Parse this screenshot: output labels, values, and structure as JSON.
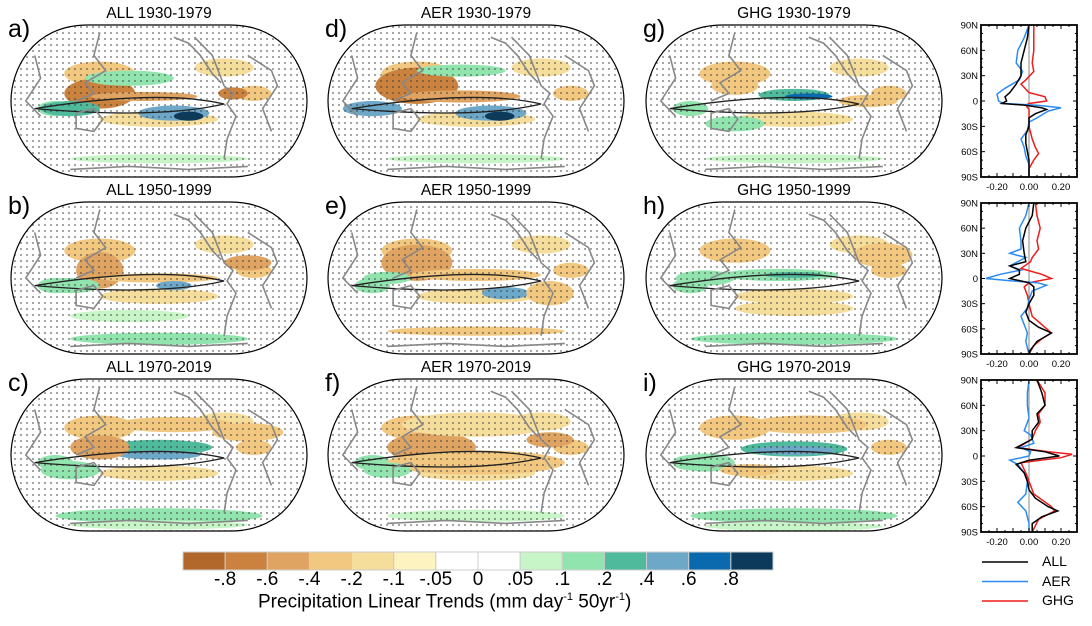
{
  "colorbar": {
    "title_main": "Precipitation Linear Trends (mm day",
    "title_sup1": "-1",
    "title_mid": " 50yr",
    "title_sup2": "-1",
    "title_end": ")",
    "labels": [
      "-.8",
      "-.6",
      "-.4",
      "-.2",
      "-.1",
      "-.05",
      "0",
      ".05",
      ".1",
      ".2",
      ".4",
      ".6",
      ".8"
    ],
    "colors": [
      "#b3682b",
      "#cb823e",
      "#e0a462",
      "#f2c880",
      "#f5dd9c",
      "#fdf3c0",
      "#ffffff",
      "#ffffff",
      "#c8f5c8",
      "#92e4af",
      "#4fba9c",
      "#6ea8c8",
      "#0b6aad",
      "#0b3a5a"
    ]
  },
  "maps": [
    {
      "label": "a)",
      "title": "ALL 1930-1979"
    },
    {
      "label": "b)",
      "title": "ALL 1950-1999"
    },
    {
      "label": "c)",
      "title": "ALL 1970-2019"
    },
    {
      "label": "d)",
      "title": "AER 1930-1979"
    },
    {
      "label": "e)",
      "title": "AER 1950-1999"
    },
    {
      "label": "f)",
      "title": "AER 1970-2019"
    },
    {
      "label": "g)",
      "title": "GHG 1930-1979"
    },
    {
      "label": "h)",
      "title": "GHG 1950-1999"
    },
    {
      "label": "i)",
      "title": "GHG 1970-2019"
    }
  ],
  "chart_data": {
    "type": "line",
    "xlim": [
      -0.3,
      0.3
    ],
    "ylim": [
      -90,
      90
    ],
    "xticks": [
      "-0.20",
      "0.00",
      "0.20"
    ],
    "xtick_values": [
      -0.2,
      0.0,
      0.2
    ],
    "yticks": [
      "90N",
      "60N",
      "30N",
      "0",
      "30S",
      "60S",
      "90S"
    ],
    "ytick_values": [
      90,
      60,
      30,
      0,
      -30,
      -60,
      -90
    ],
    "legend": [
      {
        "name": "ALL",
        "color": "#000000"
      },
      {
        "name": "AER",
        "color": "#2b8cf0"
      },
      {
        "name": "GHG",
        "color": "#ee1c1c"
      }
    ],
    "legend_placement": "bottom",
    "panels": [
      {
        "period": "1930-1979",
        "series": {
          "ALL": [
            [
              90,
              0.0
            ],
            [
              75,
              -0.01
            ],
            [
              60,
              -0.03
            ],
            [
              45,
              -0.05
            ],
            [
              30,
              -0.05
            ],
            [
              20,
              -0.08
            ],
            [
              10,
              -0.12
            ],
            [
              5,
              -0.15
            ],
            [
              0,
              -0.14
            ],
            [
              -3,
              -0.17
            ],
            [
              -5,
              -0.02
            ],
            [
              -8,
              0.08
            ],
            [
              -10,
              0.11
            ],
            [
              -15,
              0.04
            ],
            [
              -20,
              0.0
            ],
            [
              -30,
              0.0
            ],
            [
              -40,
              -0.02
            ],
            [
              -50,
              -0.02
            ],
            [
              -60,
              -0.01
            ],
            [
              -70,
              0.0
            ],
            [
              -80,
              0.0
            ],
            [
              -90,
              0.0
            ]
          ],
          "AER": [
            [
              90,
              0.0
            ],
            [
              75,
              -0.03
            ],
            [
              60,
              -0.07
            ],
            [
              45,
              -0.08
            ],
            [
              35,
              -0.04
            ],
            [
              25,
              -0.06
            ],
            [
              15,
              -0.15
            ],
            [
              8,
              -0.2
            ],
            [
              0,
              -0.19
            ],
            [
              -3,
              -0.16
            ],
            [
              -5,
              0.05
            ],
            [
              -8,
              0.2
            ],
            [
              -12,
              0.12
            ],
            [
              -20,
              0.05
            ],
            [
              -25,
              0.0
            ],
            [
              -35,
              -0.01
            ],
            [
              -45,
              -0.05
            ],
            [
              -55,
              -0.03
            ],
            [
              -65,
              -0.02
            ],
            [
              -75,
              0.0
            ],
            [
              -90,
              0.0
            ]
          ],
          "GHG": [
            [
              90,
              0.03
            ],
            [
              60,
              0.03
            ],
            [
              45,
              0.02
            ],
            [
              35,
              0.03
            ],
            [
              25,
              -0.02
            ],
            [
              20,
              -0.05
            ],
            [
              10,
              0.0
            ],
            [
              5,
              0.1
            ],
            [
              0,
              0.11
            ],
            [
              -3,
              0.0
            ],
            [
              -5,
              -0.02
            ],
            [
              -10,
              0.0
            ],
            [
              -30,
              0.0
            ],
            [
              -45,
              0.02
            ],
            [
              -55,
              0.04
            ],
            [
              -62,
              0.06
            ],
            [
              -70,
              0.03
            ],
            [
              -80,
              0.0
            ],
            [
              -90,
              0.0
            ]
          ]
        }
      },
      {
        "period": "1950-1999",
        "series": {
          "ALL": [
            [
              90,
              0.03
            ],
            [
              75,
              0.02
            ],
            [
              60,
              -0.02
            ],
            [
              45,
              -0.04
            ],
            [
              30,
              -0.03
            ],
            [
              20,
              -0.02
            ],
            [
              15,
              -0.12
            ],
            [
              10,
              -0.06
            ],
            [
              5,
              -0.06
            ],
            [
              0,
              -0.12
            ],
            [
              -3,
              -0.05
            ],
            [
              -5,
              0.0
            ],
            [
              -10,
              0.03
            ],
            [
              -20,
              0.03
            ],
            [
              -30,
              0.0
            ],
            [
              -40,
              -0.02
            ],
            [
              -50,
              0.0
            ],
            [
              -58,
              0.06
            ],
            [
              -65,
              0.14
            ],
            [
              -75,
              0.05
            ],
            [
              -85,
              0.01
            ],
            [
              -90,
              0.0
            ]
          ],
          "AER": [
            [
              90,
              0.0
            ],
            [
              75,
              -0.02
            ],
            [
              60,
              -0.06
            ],
            [
              45,
              -0.05
            ],
            [
              35,
              -0.05
            ],
            [
              30,
              -0.12
            ],
            [
              25,
              -0.02
            ],
            [
              15,
              -0.12
            ],
            [
              10,
              -0.05
            ],
            [
              5,
              -0.18
            ],
            [
              0,
              -0.27
            ],
            [
              -3,
              -0.1
            ],
            [
              -5,
              0.05
            ],
            [
              -8,
              0.11
            ],
            [
              -15,
              0.02
            ],
            [
              -25,
              0.0
            ],
            [
              -35,
              -0.01
            ],
            [
              -45,
              -0.05
            ],
            [
              -55,
              -0.03
            ],
            [
              -65,
              -0.01
            ],
            [
              -75,
              -0.02
            ],
            [
              -90,
              0.0
            ]
          ],
          "GHG": [
            [
              90,
              0.04
            ],
            [
              75,
              0.05
            ],
            [
              60,
              0.07
            ],
            [
              45,
              0.05
            ],
            [
              35,
              0.06
            ],
            [
              25,
              0.02
            ],
            [
              20,
              0.01
            ],
            [
              12,
              -0.05
            ],
            [
              5,
              0.08
            ],
            [
              0,
              0.14
            ],
            [
              -5,
              0.0
            ],
            [
              -10,
              -0.03
            ],
            [
              -20,
              -0.01
            ],
            [
              -30,
              0.0
            ],
            [
              -45,
              0.02
            ],
            [
              -55,
              0.08
            ],
            [
              -65,
              0.14
            ],
            [
              -72,
              0.08
            ],
            [
              -80,
              0.03
            ],
            [
              -90,
              0.0
            ]
          ]
        }
      },
      {
        "period": "1970-2019",
        "series": {
          "ALL": [
            [
              90,
              0.05
            ],
            [
              75,
              0.08
            ],
            [
              60,
              0.1
            ],
            [
              50,
              0.05
            ],
            [
              40,
              0.06
            ],
            [
              30,
              0.02
            ],
            [
              20,
              0.02
            ],
            [
              10,
              -0.08
            ],
            [
              5,
              0.1
            ],
            [
              0,
              0.19
            ],
            [
              -5,
              0.0
            ],
            [
              -10,
              -0.08
            ],
            [
              -20,
              -0.03
            ],
            [
              -30,
              -0.01
            ],
            [
              -40,
              0.0
            ],
            [
              -50,
              0.04
            ],
            [
              -60,
              0.12
            ],
            [
              -65,
              0.18
            ],
            [
              -72,
              0.08
            ],
            [
              -80,
              0.02
            ],
            [
              -90,
              0.02
            ]
          ],
          "AER": [
            [
              90,
              0.0
            ],
            [
              75,
              -0.01
            ],
            [
              60,
              -0.01
            ],
            [
              45,
              0.0
            ],
            [
              30,
              -0.03
            ],
            [
              25,
              0.01
            ],
            [
              15,
              0.03
            ],
            [
              10,
              -0.05
            ],
            [
              5,
              0.01
            ],
            [
              0,
              0.0
            ],
            [
              -5,
              -0.12
            ],
            [
              -10,
              -0.07
            ],
            [
              -20,
              -0.03
            ],
            [
              -30,
              -0.01
            ],
            [
              -45,
              -0.02
            ],
            [
              -55,
              -0.07
            ],
            [
              -65,
              -0.02
            ],
            [
              -80,
              0.0
            ],
            [
              -90,
              0.0
            ]
          ],
          "GHG": [
            [
              90,
              0.05
            ],
            [
              75,
              0.1
            ],
            [
              60,
              0.1
            ],
            [
              50,
              0.06
            ],
            [
              40,
              0.07
            ],
            [
              30,
              0.04
            ],
            [
              20,
              0.02
            ],
            [
              10,
              -0.07
            ],
            [
              5,
              0.12
            ],
            [
              2,
              0.27
            ],
            [
              -2,
              0.2
            ],
            [
              -8,
              -0.05
            ],
            [
              -20,
              -0.02
            ],
            [
              -30,
              0.0
            ],
            [
              -45,
              0.03
            ],
            [
              -60,
              0.14
            ],
            [
              -65,
              0.16
            ],
            [
              -75,
              0.06
            ],
            [
              -90,
              0.02
            ]
          ]
        }
      }
    ]
  }
}
